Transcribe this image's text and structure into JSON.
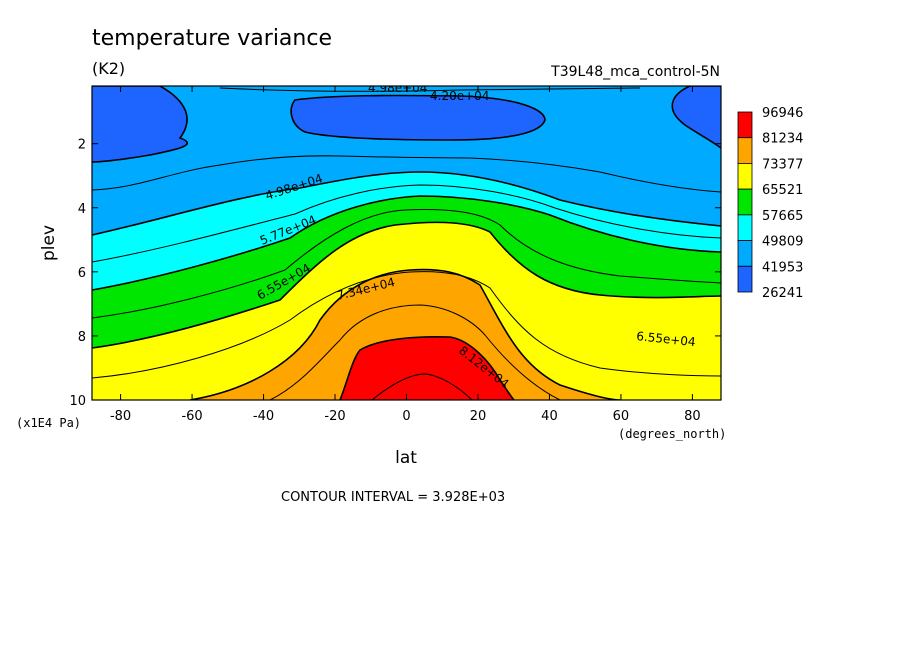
{
  "chart_data": {
    "type": "filled-contour",
    "title": "temperature variance",
    "units": "(K2)",
    "dataset_label": "T39L48_mca_control-5N",
    "xlabel": "lat",
    "ylabel": "plev",
    "x_units": "(degrees_north)",
    "y_units": "(x1E4 Pa)",
    "xlim": [
      -88,
      88
    ],
    "ylim": [
      10,
      0.2
    ],
    "y_inverted": true,
    "x_ticks": [
      "-80",
      "-60",
      "-40",
      "-20",
      "0",
      "20",
      "40",
      "60",
      "80"
    ],
    "y_ticks": [
      "2",
      "4",
      "6",
      "8",
      "10"
    ],
    "contour_interval_text": "CONTOUR INTERVAL = 3.928E+03",
    "colorbar": {
      "labels": [
        "96946",
        "81234",
        "73377",
        "65521",
        "57665",
        "49809",
        "41953",
        "26241"
      ],
      "colors": [
        "#ff0000",
        "#ffa500",
        "#ffff00",
        "#00e600",
        "#00ffff",
        "#00aaff",
        "#1e64ff"
      ]
    },
    "contour_labels": [
      "4.98e+04",
      "4.20e+04",
      "4.98e+04",
      "5.77e+04",
      "6.55e+04",
      "7.34e+04",
      "8.12e+04",
      "6.55e+04"
    ],
    "bands": [
      {
        "level_min": 26241,
        "level_max": 41953,
        "color": "#1e64ff"
      },
      {
        "level_min": 41953,
        "level_max": 49809,
        "color": "#00aaff"
      },
      {
        "level_min": 49809,
        "level_max": 57665,
        "color": "#00ffff"
      },
      {
        "level_min": 57665,
        "level_max": 65521,
        "color": "#00e600"
      },
      {
        "level_min": 65521,
        "level_max": 73377,
        "color": "#ffff00"
      },
      {
        "level_min": 73377,
        "level_max": 81234,
        "color": "#ffa500"
      },
      {
        "level_min": 81234,
        "level_max": 96946,
        "color": "#ff0000"
      }
    ]
  }
}
